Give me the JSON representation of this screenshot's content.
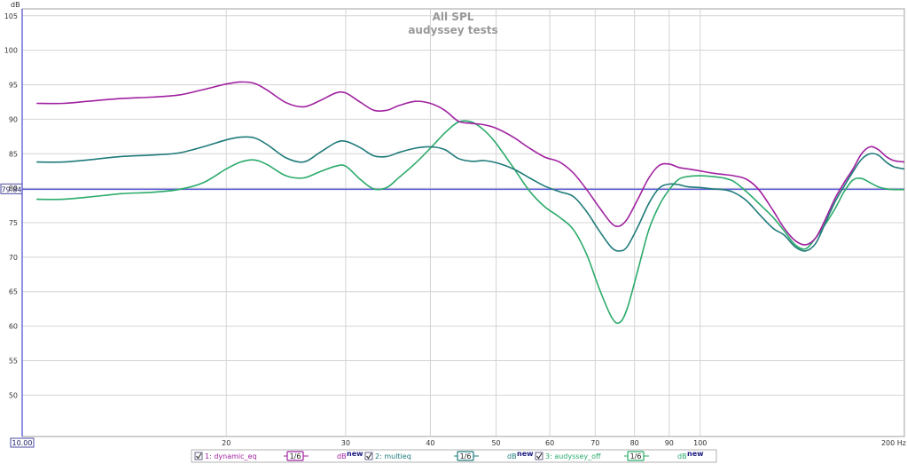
{
  "chart_data": {
    "type": "line",
    "title": "All SPL",
    "subtitle": "audyssey tests",
    "ylabel": "dB",
    "xunit": "Hz",
    "x_scale": "log",
    "xlim": [
      10,
      200
    ],
    "ylim": [
      44,
      106
    ],
    "y_ticks": [
      50,
      55,
      60,
      65,
      70,
      75,
      80,
      85,
      90,
      95,
      100,
      105
    ],
    "x_ticks": [
      {
        "value": 20,
        "label": "20"
      },
      {
        "value": 30,
        "label": "30"
      },
      {
        "value": 40,
        "label": "40"
      },
      {
        "value": 50,
        "label": "50"
      },
      {
        "value": 60,
        "label": "60"
      },
      {
        "value": 70,
        "label": "70"
      },
      {
        "value": 80,
        "label": "80"
      },
      {
        "value": 90,
        "label": "90"
      },
      {
        "value": 100,
        "label": "100"
      },
      {
        "value": 200,
        "label": "200 Hz"
      }
    ],
    "x_origin_label": "10.00",
    "reference_line": {
      "value": 79.84,
      "label": "79.84"
    },
    "grid": true,
    "series": [
      {
        "name": "1: dynamic_eq",
        "color": "#a020a0",
        "x": [
          10.5,
          11.5,
          12.5,
          14,
          15.5,
          17,
          18.5,
          20,
          21,
          22,
          23,
          24.5,
          26,
          27.5,
          29,
          30,
          31.5,
          33,
          34.5,
          36,
          38,
          40,
          42,
          44,
          46,
          48,
          50,
          53,
          56,
          59,
          62,
          65,
          68,
          71,
          74,
          76,
          78,
          81,
          84,
          87,
          90,
          93,
          96,
          100,
          104,
          108,
          112,
          117,
          122,
          128,
          133,
          138,
          143,
          148,
          153,
          158,
          163,
          168,
          173,
          178,
          183,
          188,
          193,
          200
        ],
        "y": [
          92.3,
          92.3,
          92.6,
          93,
          93.2,
          93.5,
          94.3,
          95.1,
          95.4,
          95.2,
          94.2,
          92.4,
          91.8,
          92.7,
          93.8,
          93.8,
          92.5,
          91.3,
          91.3,
          92,
          92.6,
          92.3,
          91.3,
          89.7,
          89.4,
          89.2,
          88.7,
          87.4,
          85.8,
          84.5,
          83.8,
          82.2,
          79.8,
          77.2,
          74.9,
          74.5,
          75.5,
          78.5,
          81.5,
          83.3,
          83.5,
          83,
          82.8,
          82.5,
          82.2,
          82,
          81.8,
          81.3,
          79.8,
          76.8,
          74.2,
          72.4,
          71.8,
          72.8,
          75.5,
          78.5,
          80.8,
          82.8,
          85,
          86,
          85.6,
          84.6,
          84,
          83.8
        ]
      },
      {
        "name": "2: multieq",
        "color": "#1f7a7a",
        "x": [
          10.5,
          11.5,
          12.5,
          14,
          15.5,
          17,
          18.5,
          20,
          21,
          22,
          23,
          24.5,
          26,
          27.5,
          29,
          30,
          31.5,
          33,
          34.5,
          36,
          38,
          40,
          42,
          44,
          46,
          48,
          50,
          53,
          56,
          59,
          62,
          65,
          68,
          71,
          74,
          76,
          78,
          81,
          84,
          87,
          90,
          93,
          96,
          100,
          104,
          108,
          112,
          117,
          122,
          128,
          133,
          138,
          143,
          148,
          153,
          158,
          163,
          168,
          173,
          178,
          183,
          188,
          193,
          200
        ],
        "y": [
          83.8,
          83.8,
          84.1,
          84.6,
          84.8,
          85.1,
          86,
          87,
          87.4,
          87.3,
          86.3,
          84.4,
          83.8,
          85.2,
          86.6,
          86.8,
          85.9,
          84.7,
          84.6,
          85.2,
          85.8,
          86,
          85.6,
          84.3,
          83.9,
          84,
          83.7,
          82.8,
          81.5,
          80.3,
          79.5,
          78.8,
          76.6,
          73.8,
          71.4,
          70.9,
          71.5,
          74.5,
          77.8,
          80,
          80.6,
          80.5,
          80.2,
          80.1,
          79.9,
          79.8,
          79.4,
          78.2,
          76.3,
          74.2,
          73.2,
          71.5,
          70.9,
          72,
          75,
          78,
          80.3,
          82.4,
          84.2,
          85,
          84.8,
          83.8,
          83.1,
          82.8
        ]
      },
      {
        "name": "3: audyssey_off",
        "color": "#2aaa6a",
        "x": [
          10.5,
          11.5,
          12.5,
          14,
          15.5,
          17,
          18.5,
          20,
          21,
          22,
          23,
          24.5,
          26,
          27.5,
          29,
          30,
          31.5,
          33,
          34.5,
          36,
          38,
          40,
          42,
          44,
          46,
          48,
          50,
          53,
          56,
          59,
          62,
          65,
          68,
          71,
          74,
          76,
          78,
          81,
          84,
          87,
          90,
          93,
          96,
          100,
          104,
          108,
          112,
          117,
          122,
          128,
          133,
          138,
          143,
          148,
          153,
          158,
          163,
          168,
          173,
          178,
          183,
          188,
          193,
          200
        ],
        "y": [
          78.4,
          78.4,
          78.7,
          79.2,
          79.4,
          79.8,
          80.8,
          82.8,
          83.8,
          84.1,
          83.4,
          81.8,
          81.5,
          82.4,
          83.2,
          83.2,
          81.3,
          79.9,
          80.1,
          81.6,
          83.6,
          85.8,
          88,
          89.6,
          89.6,
          88.4,
          86.5,
          83,
          79.6,
          77.3,
          75.8,
          74,
          70.4,
          65.4,
          61.3,
          60.5,
          62.5,
          68.3,
          74,
          77.5,
          79.8,
          81.3,
          81.7,
          81.8,
          81.7,
          81.5,
          81,
          79.5,
          77.8,
          75.8,
          73.8,
          71.8,
          71.2,
          72.8,
          74.8,
          77,
          79.5,
          81.2,
          81.4,
          80.8,
          80.2,
          79.9,
          79.8,
          79.8
        ]
      }
    ],
    "legend": {
      "placement": "bottom",
      "items": [
        {
          "label": "1: dynamic_eq",
          "smoothing": "1/6",
          "unit": "dB",
          "tag": "new",
          "color": "#a020a0"
        },
        {
          "label": "2: multieq",
          "smoothing": "1/6",
          "unit": "dB",
          "tag": "new",
          "color": "#1f7a7a"
        },
        {
          "label": "3: audyssey_off",
          "smoothing": "1/6",
          "unit": "dB",
          "tag": "new",
          "color": "#2aaa6a"
        }
      ]
    }
  }
}
